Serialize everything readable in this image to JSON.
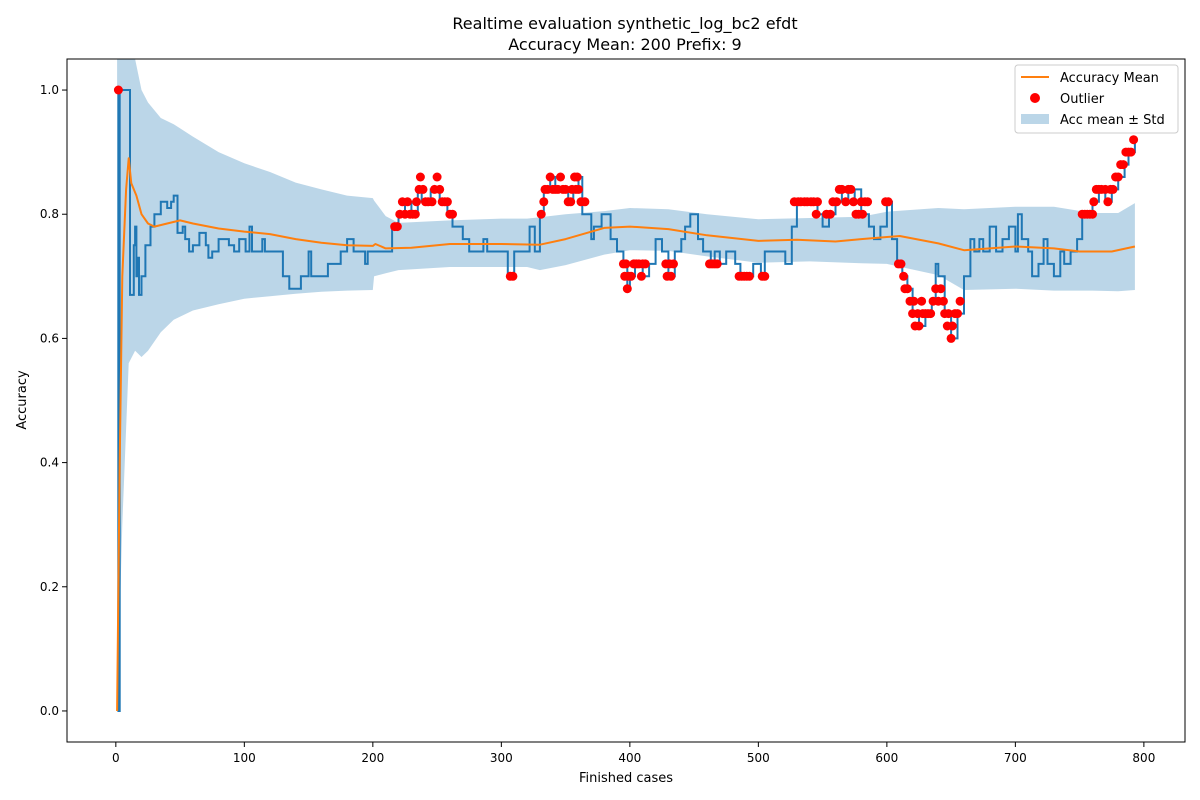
{
  "chart_data": {
    "type": "line",
    "title": "Realtime evaluation synthetic_log_bc2 efdt",
    "subtitle": "Accuracy Mean: 200 Prefix: 9",
    "xlabel": "Finished cases",
    "ylabel": "Accuracy",
    "xlim": [
      -38,
      832
    ],
    "ylim": [
      -0.05,
      1.05
    ],
    "xticks": [
      0,
      100,
      200,
      300,
      400,
      500,
      600,
      700,
      800
    ],
    "yticks": [
      0.0,
      0.2,
      0.4,
      0.6,
      0.8,
      1.0
    ],
    "ytick_labels": [
      "0.0",
      "0.2",
      "0.4",
      "0.6",
      "0.8",
      "1.0"
    ],
    "grid": false,
    "legend_position": "top-right",
    "legend": [
      {
        "label": "Accuracy Mean",
        "kind": "line",
        "color": "#ff7f0e"
      },
      {
        "label": "Outlier",
        "kind": "marker",
        "color": "#ff0000"
      },
      {
        "label": "Acc mean ± Std",
        "kind": "patch",
        "color": "#1f77b4"
      }
    ],
    "colors": {
      "accuracy": "#1f77b4",
      "mean": "#ff7f0e",
      "outlier": "#ff0000",
      "band": "#1f77b4"
    },
    "accuracy": [
      [
        1,
        1.0
      ],
      [
        2,
        0.0
      ],
      [
        3,
        1.0
      ],
      [
        10,
        1.0
      ],
      [
        11,
        0.67
      ],
      [
        14,
        0.75
      ],
      [
        15,
        0.78
      ],
      [
        16,
        0.7
      ],
      [
        17,
        0.73
      ],
      [
        18,
        0.67
      ],
      [
        20,
        0.7
      ],
      [
        23,
        0.75
      ],
      [
        27,
        0.78
      ],
      [
        30,
        0.8
      ],
      [
        35,
        0.82
      ],
      [
        40,
        0.81
      ],
      [
        43,
        0.82
      ],
      [
        45,
        0.83
      ],
      [
        48,
        0.77
      ],
      [
        52,
        0.78
      ],
      [
        54,
        0.76
      ],
      [
        57,
        0.74
      ],
      [
        60,
        0.75
      ],
      [
        65,
        0.77
      ],
      [
        70,
        0.75
      ],
      [
        72,
        0.73
      ],
      [
        75,
        0.74
      ],
      [
        80,
        0.76
      ],
      [
        88,
        0.75
      ],
      [
        92,
        0.74
      ],
      [
        96,
        0.76
      ],
      [
        101,
        0.74
      ],
      [
        104,
        0.78
      ],
      [
        106,
        0.74
      ],
      [
        114,
        0.76
      ],
      [
        116,
        0.74
      ],
      [
        127,
        0.74
      ],
      [
        130,
        0.7
      ],
      [
        135,
        0.68
      ],
      [
        144,
        0.7
      ],
      [
        150,
        0.74
      ],
      [
        152,
        0.7
      ],
      [
        165,
        0.72
      ],
      [
        170,
        0.72
      ],
      [
        175,
        0.74
      ],
      [
        180,
        0.76
      ],
      [
        185,
        0.74
      ],
      [
        190,
        0.74
      ],
      [
        194,
        0.72
      ],
      [
        196,
        0.74
      ],
      [
        210,
        0.74
      ],
      [
        215,
        0.78
      ],
      [
        220,
        0.8
      ],
      [
        225,
        0.82
      ],
      [
        230,
        0.8
      ],
      [
        235,
        0.84
      ],
      [
        238,
        0.82
      ],
      [
        245,
        0.84
      ],
      [
        252,
        0.82
      ],
      [
        258,
        0.8
      ],
      [
        262,
        0.78
      ],
      [
        270,
        0.76
      ],
      [
        275,
        0.74
      ],
      [
        282,
        0.74
      ],
      [
        286,
        0.76
      ],
      [
        289,
        0.74
      ],
      [
        305,
        0.7
      ],
      [
        310,
        0.74
      ],
      [
        318,
        0.74
      ],
      [
        322,
        0.78
      ],
      [
        326,
        0.74
      ],
      [
        330,
        0.8
      ],
      [
        333,
        0.84
      ],
      [
        338,
        0.86
      ],
      [
        342,
        0.84
      ],
      [
        348,
        0.84
      ],
      [
        352,
        0.82
      ],
      [
        356,
        0.84
      ],
      [
        360,
        0.86
      ],
      [
        363,
        0.8
      ],
      [
        366,
        0.8
      ],
      [
        370,
        0.76
      ],
      [
        372,
        0.78
      ],
      [
        378,
        0.8
      ],
      [
        385,
        0.76
      ],
      [
        390,
        0.74
      ],
      [
        395,
        0.72
      ],
      [
        398,
        0.68
      ],
      [
        400,
        0.7
      ],
      [
        404,
        0.72
      ],
      [
        410,
        0.7
      ],
      [
        415,
        0.72
      ],
      [
        420,
        0.76
      ],
      [
        425,
        0.74
      ],
      [
        430,
        0.7
      ],
      [
        435,
        0.74
      ],
      [
        440,
        0.76
      ],
      [
        443,
        0.78
      ],
      [
        447,
        0.8
      ],
      [
        450,
        0.8
      ],
      [
        453,
        0.76
      ],
      [
        457,
        0.74
      ],
      [
        460,
        0.74
      ],
      [
        463,
        0.72
      ],
      [
        466,
        0.74
      ],
      [
        470,
        0.72
      ],
      [
        475,
        0.74
      ],
      [
        482,
        0.72
      ],
      [
        486,
        0.7
      ],
      [
        492,
        0.7
      ],
      [
        496,
        0.72
      ],
      [
        502,
        0.7
      ],
      [
        505,
        0.74
      ],
      [
        515,
        0.74
      ],
      [
        521,
        0.72
      ],
      [
        526,
        0.78
      ],
      [
        530,
        0.82
      ],
      [
        535,
        0.82
      ],
      [
        546,
        0.8
      ],
      [
        550,
        0.78
      ],
      [
        555,
        0.8
      ],
      [
        560,
        0.82
      ],
      [
        565,
        0.84
      ],
      [
        570,
        0.82
      ],
      [
        575,
        0.84
      ],
      [
        580,
        0.8
      ],
      [
        586,
        0.78
      ],
      [
        590,
        0.76
      ],
      [
        595,
        0.78
      ],
      [
        600,
        0.82
      ],
      [
        604,
        0.76
      ],
      [
        608,
        0.72
      ],
      [
        612,
        0.7
      ],
      [
        616,
        0.68
      ],
      [
        620,
        0.64
      ],
      [
        625,
        0.62
      ],
      [
        630,
        0.64
      ],
      [
        635,
        0.66
      ],
      [
        638,
        0.72
      ],
      [
        640,
        0.7
      ],
      [
        645,
        0.64
      ],
      [
        650,
        0.6
      ],
      [
        655,
        0.64
      ],
      [
        660,
        0.7
      ],
      [
        665,
        0.76
      ],
      [
        668,
        0.74
      ],
      [
        672,
        0.76
      ],
      [
        675,
        0.74
      ],
      [
        680,
        0.78
      ],
      [
        685,
        0.74
      ],
      [
        690,
        0.76
      ],
      [
        695,
        0.78
      ],
      [
        700,
        0.74
      ],
      [
        702,
        0.8
      ],
      [
        705,
        0.76
      ],
      [
        710,
        0.74
      ],
      [
        713,
        0.7
      ],
      [
        718,
        0.72
      ],
      [
        722,
        0.76
      ],
      [
        725,
        0.72
      ],
      [
        730,
        0.7
      ],
      [
        735,
        0.74
      ],
      [
        738,
        0.72
      ],
      [
        743,
        0.74
      ],
      [
        748,
        0.76
      ],
      [
        752,
        0.8
      ],
      [
        760,
        0.82
      ],
      [
        765,
        0.84
      ],
      [
        770,
        0.82
      ],
      [
        775,
        0.84
      ],
      [
        780,
        0.86
      ],
      [
        785,
        0.88
      ],
      [
        788,
        0.9
      ],
      [
        790,
        0.9
      ],
      [
        793,
        0.92
      ]
    ],
    "mean": [
      [
        1,
        0.0
      ],
      [
        3,
        0.4
      ],
      [
        5,
        0.7
      ],
      [
        8,
        0.84
      ],
      [
        10,
        0.89
      ],
      [
        12,
        0.85
      ],
      [
        16,
        0.83
      ],
      [
        20,
        0.8
      ],
      [
        25,
        0.785
      ],
      [
        30,
        0.78
      ],
      [
        40,
        0.785
      ],
      [
        50,
        0.79
      ],
      [
        60,
        0.785
      ],
      [
        80,
        0.777
      ],
      [
        100,
        0.772
      ],
      [
        120,
        0.768
      ],
      [
        140,
        0.76
      ],
      [
        160,
        0.754
      ],
      [
        180,
        0.75
      ],
      [
        200,
        0.749
      ],
      [
        202,
        0.752
      ],
      [
        210,
        0.745
      ],
      [
        230,
        0.746
      ],
      [
        260,
        0.752
      ],
      [
        300,
        0.752
      ],
      [
        330,
        0.751
      ],
      [
        350,
        0.76
      ],
      [
        380,
        0.778
      ],
      [
        400,
        0.78
      ],
      [
        430,
        0.776
      ],
      [
        460,
        0.766
      ],
      [
        500,
        0.757
      ],
      [
        530,
        0.759
      ],
      [
        560,
        0.756
      ],
      [
        580,
        0.76
      ],
      [
        610,
        0.765
      ],
      [
        640,
        0.753
      ],
      [
        660,
        0.742
      ],
      [
        700,
        0.748
      ],
      [
        730,
        0.745
      ],
      [
        750,
        0.74
      ],
      [
        775,
        0.74
      ],
      [
        793,
        0.748
      ]
    ],
    "band": [
      [
        1,
        0.0,
        1.05
      ],
      [
        5,
        0.3,
        1.05
      ],
      [
        10,
        0.56,
        1.05
      ],
      [
        15,
        0.58,
        1.05
      ],
      [
        20,
        0.57,
        1.0
      ],
      [
        25,
        0.58,
        0.98
      ],
      [
        35,
        0.61,
        0.955
      ],
      [
        45,
        0.63,
        0.945
      ],
      [
        60,
        0.645,
        0.925
      ],
      [
        80,
        0.655,
        0.9
      ],
      [
        100,
        0.664,
        0.882
      ],
      [
        120,
        0.668,
        0.868
      ],
      [
        140,
        0.672,
        0.851
      ],
      [
        160,
        0.675,
        0.84
      ],
      [
        180,
        0.677,
        0.83
      ],
      [
        200,
        0.678,
        0.826
      ],
      [
        201,
        0.7,
        0.822
      ],
      [
        210,
        0.705,
        0.797
      ],
      [
        220,
        0.71,
        0.786
      ],
      [
        260,
        0.715,
        0.79
      ],
      [
        300,
        0.715,
        0.793
      ],
      [
        320,
        0.715,
        0.793
      ],
      [
        330,
        0.71,
        0.795
      ],
      [
        350,
        0.718,
        0.8
      ],
      [
        380,
        0.735,
        0.805
      ],
      [
        400,
        0.742,
        0.81
      ],
      [
        430,
        0.741,
        0.808
      ],
      [
        460,
        0.732,
        0.8
      ],
      [
        500,
        0.722,
        0.792
      ],
      [
        540,
        0.724,
        0.794
      ],
      [
        580,
        0.721,
        0.796
      ],
      [
        600,
        0.72,
        0.804
      ],
      [
        640,
        0.702,
        0.81
      ],
      [
        660,
        0.678,
        0.808
      ],
      [
        700,
        0.68,
        0.812
      ],
      [
        730,
        0.677,
        0.812
      ],
      [
        760,
        0.677,
        0.802
      ],
      [
        780,
        0.676,
        0.802
      ],
      [
        793,
        0.678,
        0.818
      ]
    ],
    "outliers": [
      [
        2,
        1.0
      ],
      [
        217,
        0.78
      ],
      [
        219,
        0.78
      ],
      [
        221,
        0.8
      ],
      [
        223,
        0.82
      ],
      [
        225,
        0.8
      ],
      [
        227,
        0.82
      ],
      [
        229,
        0.8
      ],
      [
        231,
        0.8
      ],
      [
        233,
        0.8
      ],
      [
        234,
        0.82
      ],
      [
        236,
        0.84
      ],
      [
        237,
        0.86
      ],
      [
        239,
        0.84
      ],
      [
        241,
        0.82
      ],
      [
        243,
        0.82
      ],
      [
        246,
        0.82
      ],
      [
        248,
        0.84
      ],
      [
        250,
        0.86
      ],
      [
        252,
        0.84
      ],
      [
        254,
        0.82
      ],
      [
        256,
        0.82
      ],
      [
        258,
        0.82
      ],
      [
        260,
        0.8
      ],
      [
        262,
        0.8
      ],
      [
        307,
        0.7
      ],
      [
        309,
        0.7
      ],
      [
        331,
        0.8
      ],
      [
        333,
        0.82
      ],
      [
        334,
        0.84
      ],
      [
        336,
        0.84
      ],
      [
        338,
        0.86
      ],
      [
        340,
        0.84
      ],
      [
        342,
        0.84
      ],
      [
        344,
        0.84
      ],
      [
        346,
        0.86
      ],
      [
        348,
        0.84
      ],
      [
        350,
        0.84
      ],
      [
        352,
        0.82
      ],
      [
        354,
        0.82
      ],
      [
        355,
        0.84
      ],
      [
        357,
        0.86
      ],
      [
        358,
        0.84
      ],
      [
        359,
        0.86
      ],
      [
        360,
        0.84
      ],
      [
        362,
        0.82
      ],
      [
        365,
        0.82
      ],
      [
        395,
        0.72
      ],
      [
        396,
        0.7
      ],
      [
        397,
        0.72
      ],
      [
        398,
        0.68
      ],
      [
        399,
        0.7
      ],
      [
        401,
        0.7
      ],
      [
        403,
        0.72
      ],
      [
        405,
        0.72
      ],
      [
        407,
        0.72
      ],
      [
        409,
        0.7
      ],
      [
        410,
        0.72
      ],
      [
        412,
        0.72
      ],
      [
        428,
        0.72
      ],
      [
        429,
        0.7
      ],
      [
        431,
        0.72
      ],
      [
        432,
        0.7
      ],
      [
        434,
        0.72
      ],
      [
        462,
        0.72
      ],
      [
        464,
        0.72
      ],
      [
        466,
        0.72
      ],
      [
        468,
        0.72
      ],
      [
        485,
        0.7
      ],
      [
        487,
        0.7
      ],
      [
        489,
        0.7
      ],
      [
        491,
        0.7
      ],
      [
        493,
        0.7
      ],
      [
        503,
        0.7
      ],
      [
        505,
        0.7
      ],
      [
        528,
        0.82
      ],
      [
        531,
        0.82
      ],
      [
        533,
        0.82
      ],
      [
        536,
        0.82
      ],
      [
        538,
        0.82
      ],
      [
        541,
        0.82
      ],
      [
        543,
        0.82
      ],
      [
        545,
        0.8
      ],
      [
        546,
        0.82
      ],
      [
        553,
        0.8
      ],
      [
        556,
        0.8
      ],
      [
        558,
        0.82
      ],
      [
        561,
        0.82
      ],
      [
        563,
        0.84
      ],
      [
        565,
        0.84
      ],
      [
        568,
        0.82
      ],
      [
        570,
        0.84
      ],
      [
        572,
        0.84
      ],
      [
        574,
        0.82
      ],
      [
        576,
        0.8
      ],
      [
        578,
        0.8
      ],
      [
        580,
        0.82
      ],
      [
        581,
        0.8
      ],
      [
        583,
        0.82
      ],
      [
        585,
        0.82
      ],
      [
        599,
        0.82
      ],
      [
        601,
        0.82
      ],
      [
        609,
        0.72
      ],
      [
        611,
        0.72
      ],
      [
        613,
        0.7
      ],
      [
        614,
        0.68
      ],
      [
        616,
        0.68
      ],
      [
        618,
        0.66
      ],
      [
        620,
        0.64
      ],
      [
        621,
        0.66
      ],
      [
        622,
        0.62
      ],
      [
        624,
        0.64
      ],
      [
        625,
        0.62
      ],
      [
        627,
        0.66
      ],
      [
        628,
        0.64
      ],
      [
        630,
        0.64
      ],
      [
        632,
        0.64
      ],
      [
        634,
        0.64
      ],
      [
        636,
        0.66
      ],
      [
        638,
        0.68
      ],
      [
        640,
        0.66
      ],
      [
        642,
        0.68
      ],
      [
        644,
        0.66
      ],
      [
        645,
        0.64
      ],
      [
        647,
        0.62
      ],
      [
        648,
        0.64
      ],
      [
        650,
        0.6
      ],
      [
        651,
        0.62
      ],
      [
        653,
        0.64
      ],
      [
        655,
        0.64
      ],
      [
        657,
        0.66
      ],
      [
        752,
        0.8
      ],
      [
        754,
        0.8
      ],
      [
        756,
        0.8
      ],
      [
        758,
        0.8
      ],
      [
        760,
        0.8
      ],
      [
        761,
        0.82
      ],
      [
        763,
        0.84
      ],
      [
        765,
        0.84
      ],
      [
        767,
        0.84
      ],
      [
        770,
        0.84
      ],
      [
        772,
        0.82
      ],
      [
        774,
        0.84
      ],
      [
        776,
        0.84
      ],
      [
        778,
        0.86
      ],
      [
        780,
        0.86
      ],
      [
        782,
        0.88
      ],
      [
        784,
        0.88
      ],
      [
        786,
        0.9
      ],
      [
        788,
        0.9
      ],
      [
        790,
        0.9
      ],
      [
        792,
        0.92
      ]
    ]
  }
}
